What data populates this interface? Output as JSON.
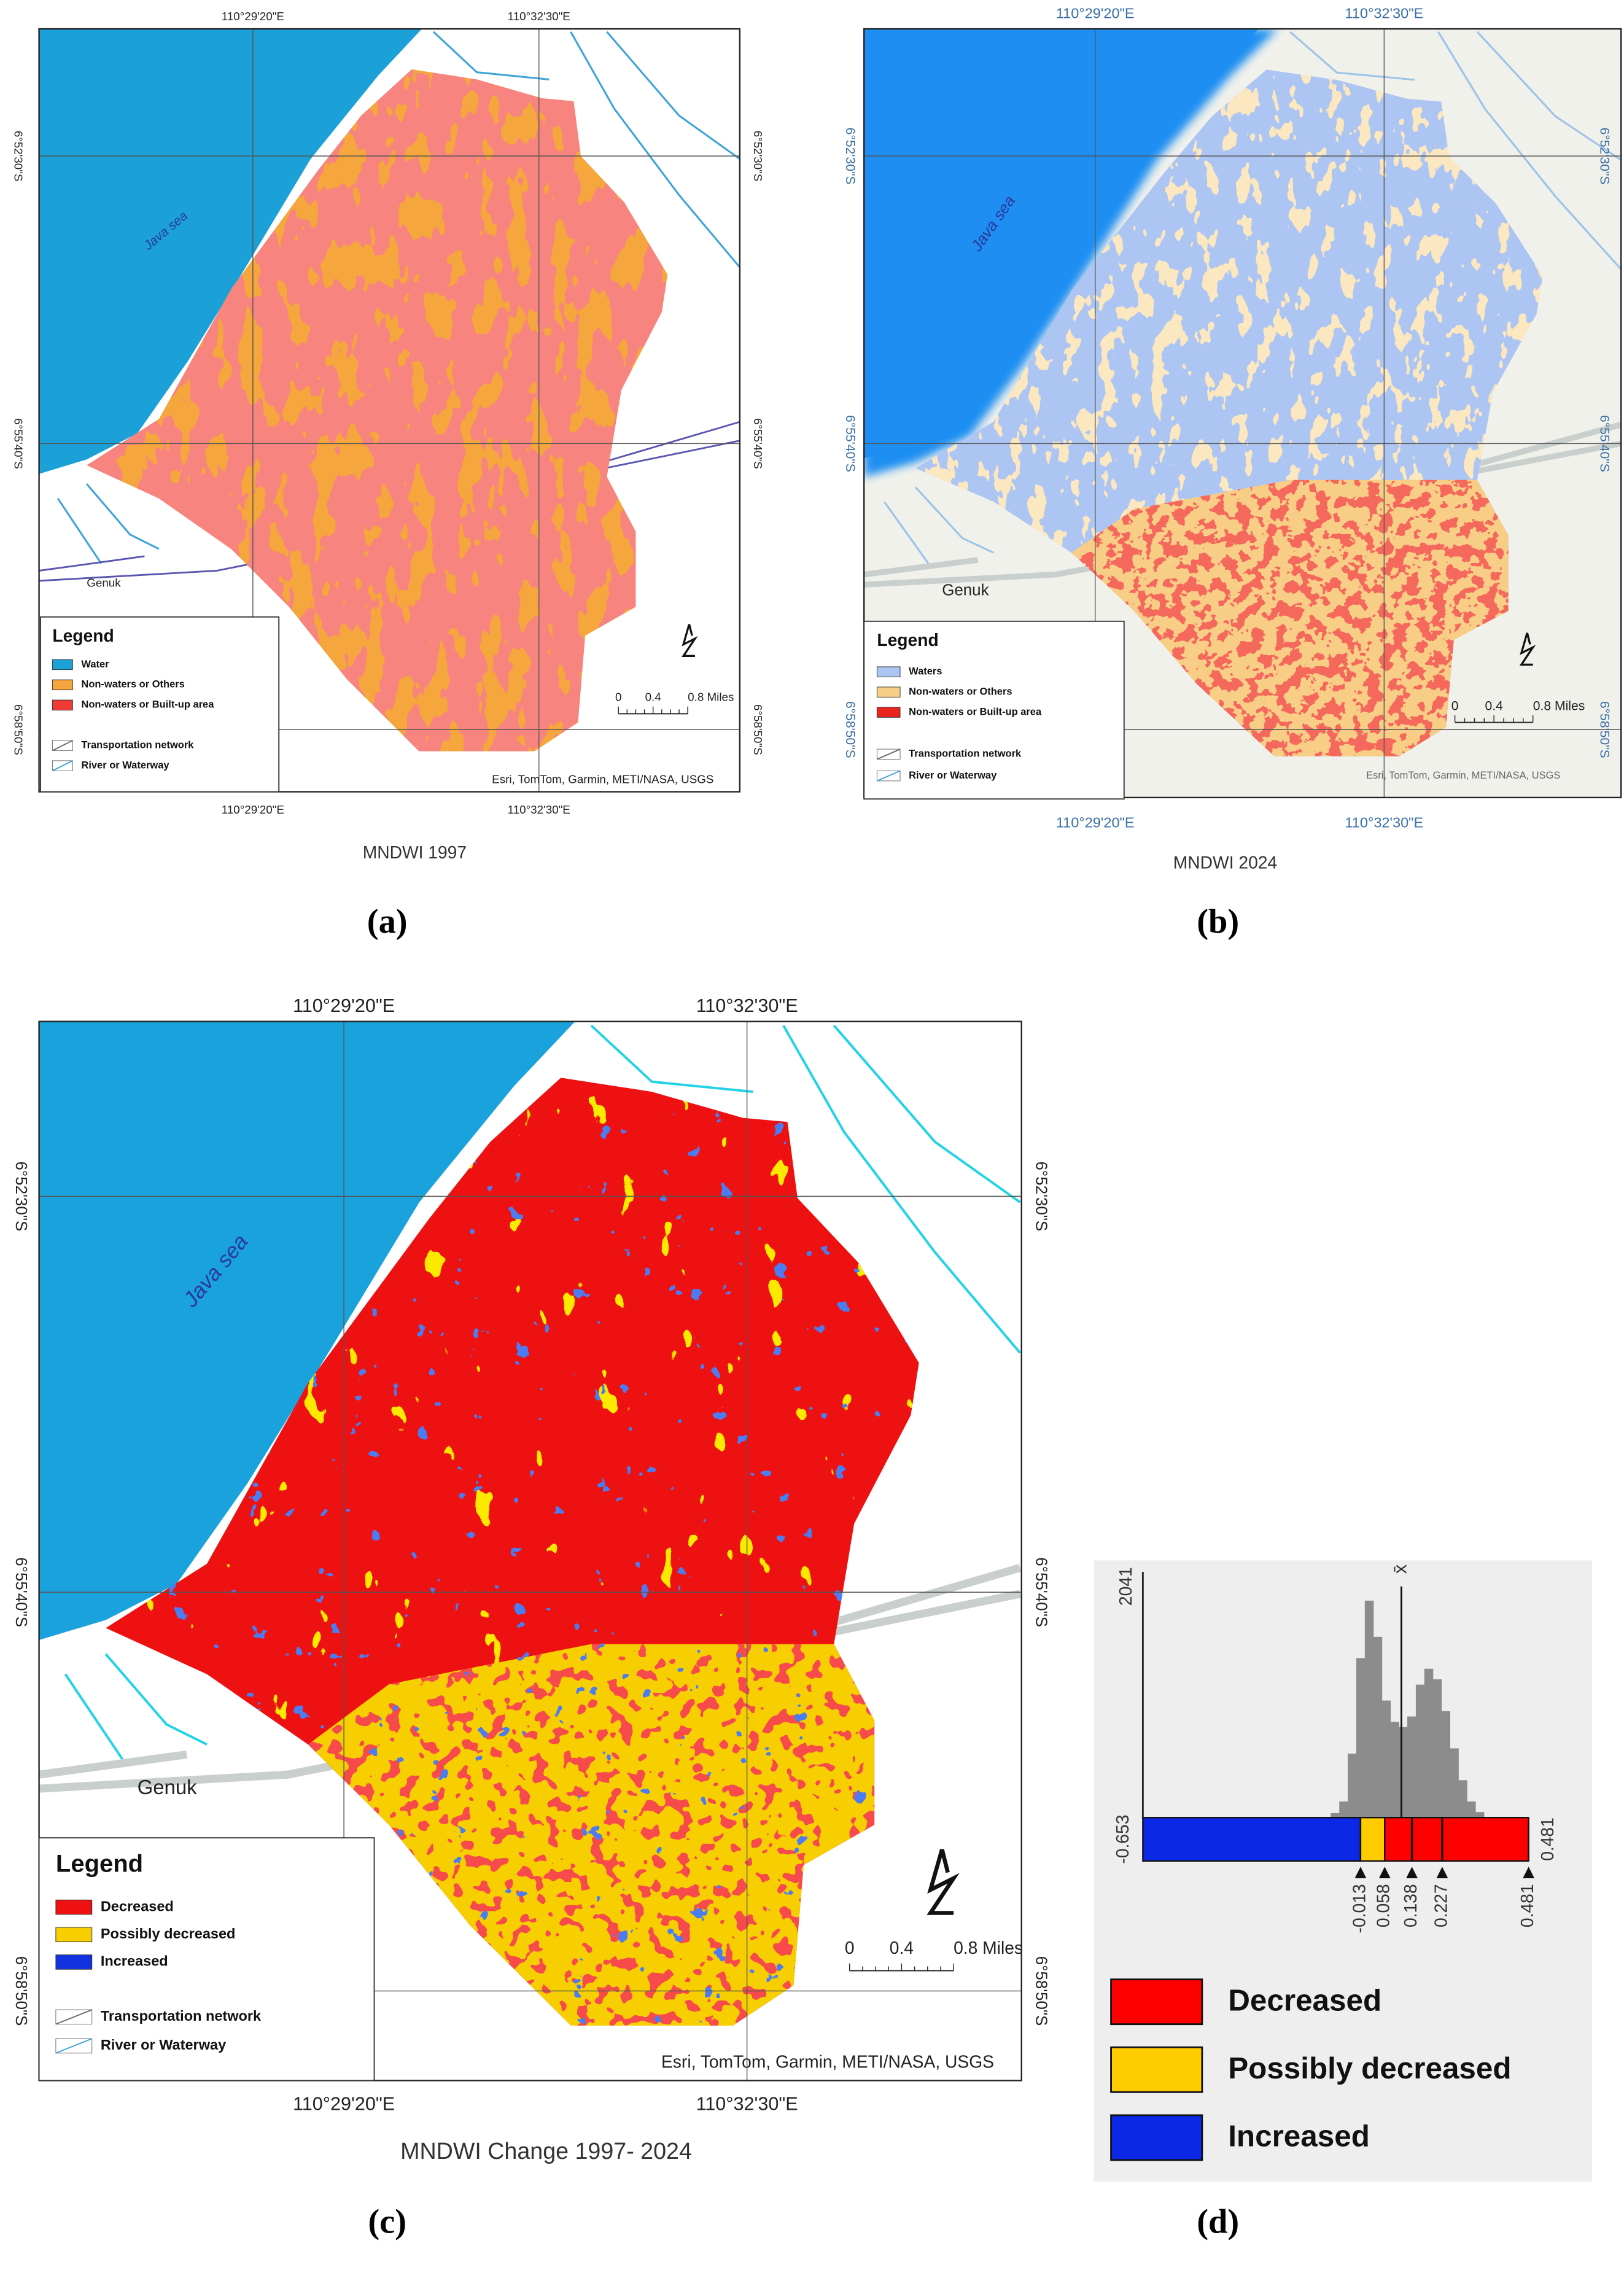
{
  "panels": [
    {
      "label": "(a)",
      "caption": "MNDWI 1997",
      "lon_top": [
        "110°29'20\"E",
        "110°32'30\"E"
      ],
      "lon_bottom": [
        "110°29'20\"E",
        "110°32'30\"E"
      ],
      "lat_left": [
        "6°52'30\"S",
        "6°55'40\"S",
        "6°58'50\"S"
      ],
      "lat_right": [
        "6°52'30\"S",
        "6°55'40\"S",
        "6°58'50\"S"
      ],
      "sea_label": "Java sea",
      "place": "Genuk",
      "legend": {
        "title": "Legend",
        "items": [
          {
            "name": "Water",
            "color": "#1ba0d8"
          },
          {
            "name": "Non-waters or Others",
            "color": "#f5a63c"
          },
          {
            "name": "Non-waters or Built-up area",
            "color": "#ee3b36"
          }
        ],
        "network": [
          "Transportation network",
          "River or Waterway"
        ]
      },
      "scale": [
        "0",
        "0.4",
        "0.8 Miles"
      ],
      "attribution": "Esri, TomTom, Garmin, METI/NASA, USGS"
    },
    {
      "label": "(b)",
      "caption": "MNDWI 2024",
      "lon_top": [
        "110°29'20\"E",
        "110°32'30\"E"
      ],
      "lon_bottom": [
        "110°29'20\"E",
        "110°32'30\"E"
      ],
      "lat_left": [
        "6°52'30\"S",
        "6°55'40\"S",
        "6°58'50\"S"
      ],
      "lat_right": [
        "6°52'30\"S",
        "6°55'40\"S",
        "6°58'50\"S"
      ],
      "sea_label": "Java sea",
      "place": "Genuk",
      "legend": {
        "title": "Legend",
        "items": [
          {
            "name": "Waters",
            "color": "#adc5f2"
          },
          {
            "name": "Non-waters or Others",
            "color": "#f8cd86"
          },
          {
            "name": "Non-waters or Built-up area",
            "color": "#e8241c"
          }
        ],
        "network": [
          "Transportation network",
          "River or Waterway"
        ]
      },
      "scale": [
        "0",
        "0.4",
        "0.8 Miles"
      ],
      "attribution": "Esri, TomTom, Garmin, METI/NASA, USGS"
    },
    {
      "label": "(c)",
      "caption": "MNDWI Change 1997- 2024",
      "lon_top": [
        "110°29'20\"E",
        "110°32'30\"E"
      ],
      "lon_bottom": [
        "110°29'20\"E",
        "110°32'30\"E"
      ],
      "lat_left": [
        "6°52'30\"S",
        "6°55'40\"S",
        "6°58'50\"S"
      ],
      "lat_right": [
        "6°52'30\"S",
        "6°55'40\"S",
        "6°58'50\"S"
      ],
      "sea_label": "Java sea",
      "place": "Genuk",
      "legend": {
        "title": "Legend",
        "items": [
          {
            "name": "Decreased",
            "color": "#ee1111"
          },
          {
            "name": "Possibly decreased",
            "color": "#f7cf00"
          },
          {
            "name": "Increased",
            "color": "#1232e0"
          }
        ],
        "network": [
          "Transportation network",
          "River or Waterway"
        ]
      },
      "scale": [
        "0",
        "0.4",
        "0.8 Miles"
      ],
      "attribution": "Esri, TomTom, Garmin, METI/NASA, USGS"
    }
  ],
  "histogram": {
    "label": "(d)",
    "max_count": 2041,
    "xlim": [
      -0.653,
      0.481
    ],
    "mean_symbol": "x̄",
    "mean": 0.107,
    "bins": [
      -0.1,
      -0.075,
      -0.05,
      -0.025,
      0,
      0.025,
      0.05,
      0.075,
      0.1,
      0.125,
      0.15,
      0.175,
      0.2,
      0.225,
      0.25,
      0.275,
      0.3,
      0.325,
      0.35
    ],
    "counts": [
      40,
      150,
      600,
      1500,
      2041,
      1700,
      1100,
      900,
      850,
      950,
      1250,
      1400,
      1300,
      1000,
      650,
      350,
      150,
      50
    ],
    "breaks": [
      -0.013,
      0.058,
      0.138,
      0.227,
      0.481
    ],
    "classes": [
      {
        "name": "Decreased",
        "color": "#ff0000"
      },
      {
        "name": "Possibly decreased",
        "color": "#ffcc00"
      },
      {
        "name": "Increased",
        "color": "#0a28e6"
      }
    ]
  }
}
